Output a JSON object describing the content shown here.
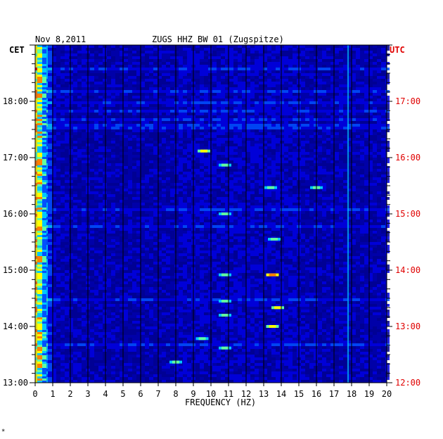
{
  "chart_data": {
    "type": "heatmap",
    "header": {
      "date": "Nov 8,2011",
      "station": "ZUGS HHZ BW 01 (Zugspitze)"
    },
    "left_axis": {
      "zone": "CET",
      "ticks": [
        "18:00",
        "17:00",
        "16:00",
        "15:00",
        "14:00",
        "13:00"
      ]
    },
    "right_axis": {
      "zone": "UTC",
      "ticks": [
        "17:00",
        "16:00",
        "15:00",
        "14:00",
        "13:00",
        "12:00"
      ]
    },
    "xlabel": "FREQUENCY (HZ)",
    "x_ticks": [
      "0",
      "1",
      "2",
      "3",
      "4",
      "5",
      "6",
      "7",
      "8",
      "9",
      "10",
      "11",
      "12",
      "13",
      "14",
      "15",
      "16",
      "17",
      "18",
      "19",
      "20"
    ],
    "xlim": [
      0,
      20
    ],
    "hour_marks": [
      {
        "cet_hour": 18,
        "utc_hour": 17
      },
      {
        "cet_hour": 17,
        "utc_hour": 16
      },
      {
        "cet_hour": 16,
        "utc_hour": 15
      },
      {
        "cet_hour": 15,
        "utc_hour": 14
      },
      {
        "cet_hour": 14,
        "utc_hour": 13
      },
      {
        "cet_hour": 13,
        "utc_hour": 12
      }
    ],
    "time_range_cet": [
      "13:00",
      "18:45"
    ],
    "colormap": [
      "#000090",
      "#0000e0",
      "#0050ff",
      "#00c8ff",
      "#60ffa0",
      "#ffff00",
      "#ff8000",
      "#e00000"
    ],
    "background_color": "#0000a8",
    "grid": true,
    "hot_spots": [
      {
        "f": 9.6,
        "t": "17:07",
        "level": 5
      },
      {
        "f": 10.8,
        "t": "16:52",
        "level": 4
      },
      {
        "f": 13.4,
        "t": "16:28",
        "level": 4
      },
      {
        "f": 16.0,
        "t": "16:28",
        "level": 4
      },
      {
        "f": 10.8,
        "t": "16:00",
        "level": 4
      },
      {
        "f": 13.6,
        "t": "15:33",
        "level": 4
      },
      {
        "f": 10.8,
        "t": "14:55",
        "level": 4
      },
      {
        "f": 13.5,
        "t": "14:55",
        "level": 6
      },
      {
        "f": 10.8,
        "t": "14:27",
        "level": 4
      },
      {
        "f": 13.8,
        "t": "14:20",
        "level": 5
      },
      {
        "f": 10.8,
        "t": "14:12",
        "level": 4
      },
      {
        "f": 13.5,
        "t": "13:60",
        "level": 4
      },
      {
        "f": 9.5,
        "t": "13:47",
        "level": 4
      },
      {
        "f": 10.8,
        "t": "13:37",
        "level": 4
      },
      {
        "f": 8.0,
        "t": "13:22",
        "level": 4
      },
      {
        "f": 13.5,
        "t": "14:00",
        "level": 5
      }
    ],
    "persistent_lines_hz": [
      17.8,
      0.3
    ]
  },
  "footer_mark": "*"
}
